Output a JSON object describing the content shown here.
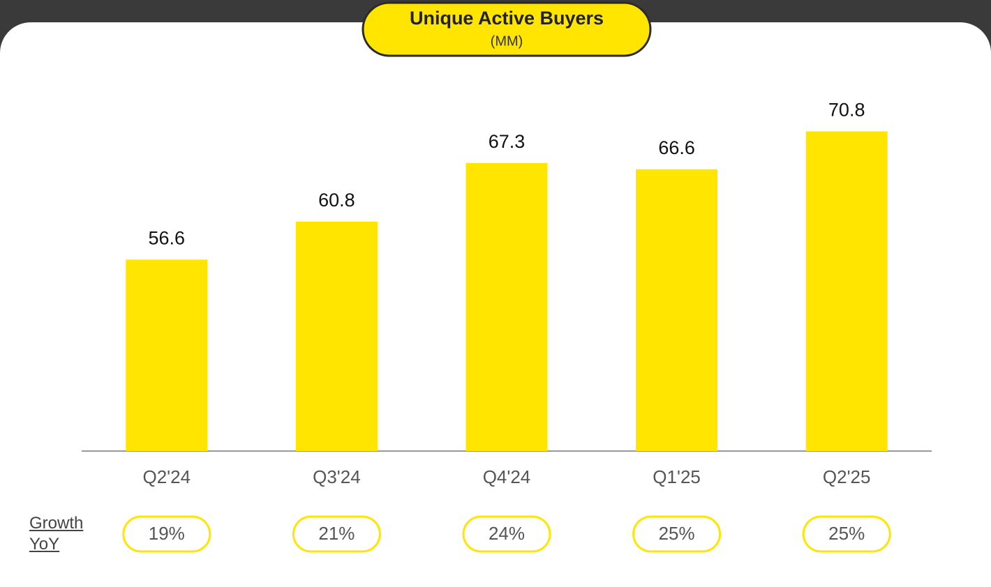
{
  "chart_data": {
    "type": "bar",
    "title": "Unique Active Buyers",
    "subtitle": "(MM)",
    "categories": [
      "Q2'24",
      "Q3'24",
      "Q4'24",
      "Q1'25",
      "Q2'25"
    ],
    "values": [
      56.6,
      60.8,
      67.3,
      66.6,
      70.8
    ],
    "color": "#ffe500",
    "ylim": [
      35.4,
      75
    ],
    "growth": {
      "label": "Growth YoY",
      "values": [
        19,
        21,
        24,
        25,
        25
      ],
      "value_labels": [
        "19%",
        "21%",
        "24%",
        "25%",
        "25%"
      ]
    }
  }
}
